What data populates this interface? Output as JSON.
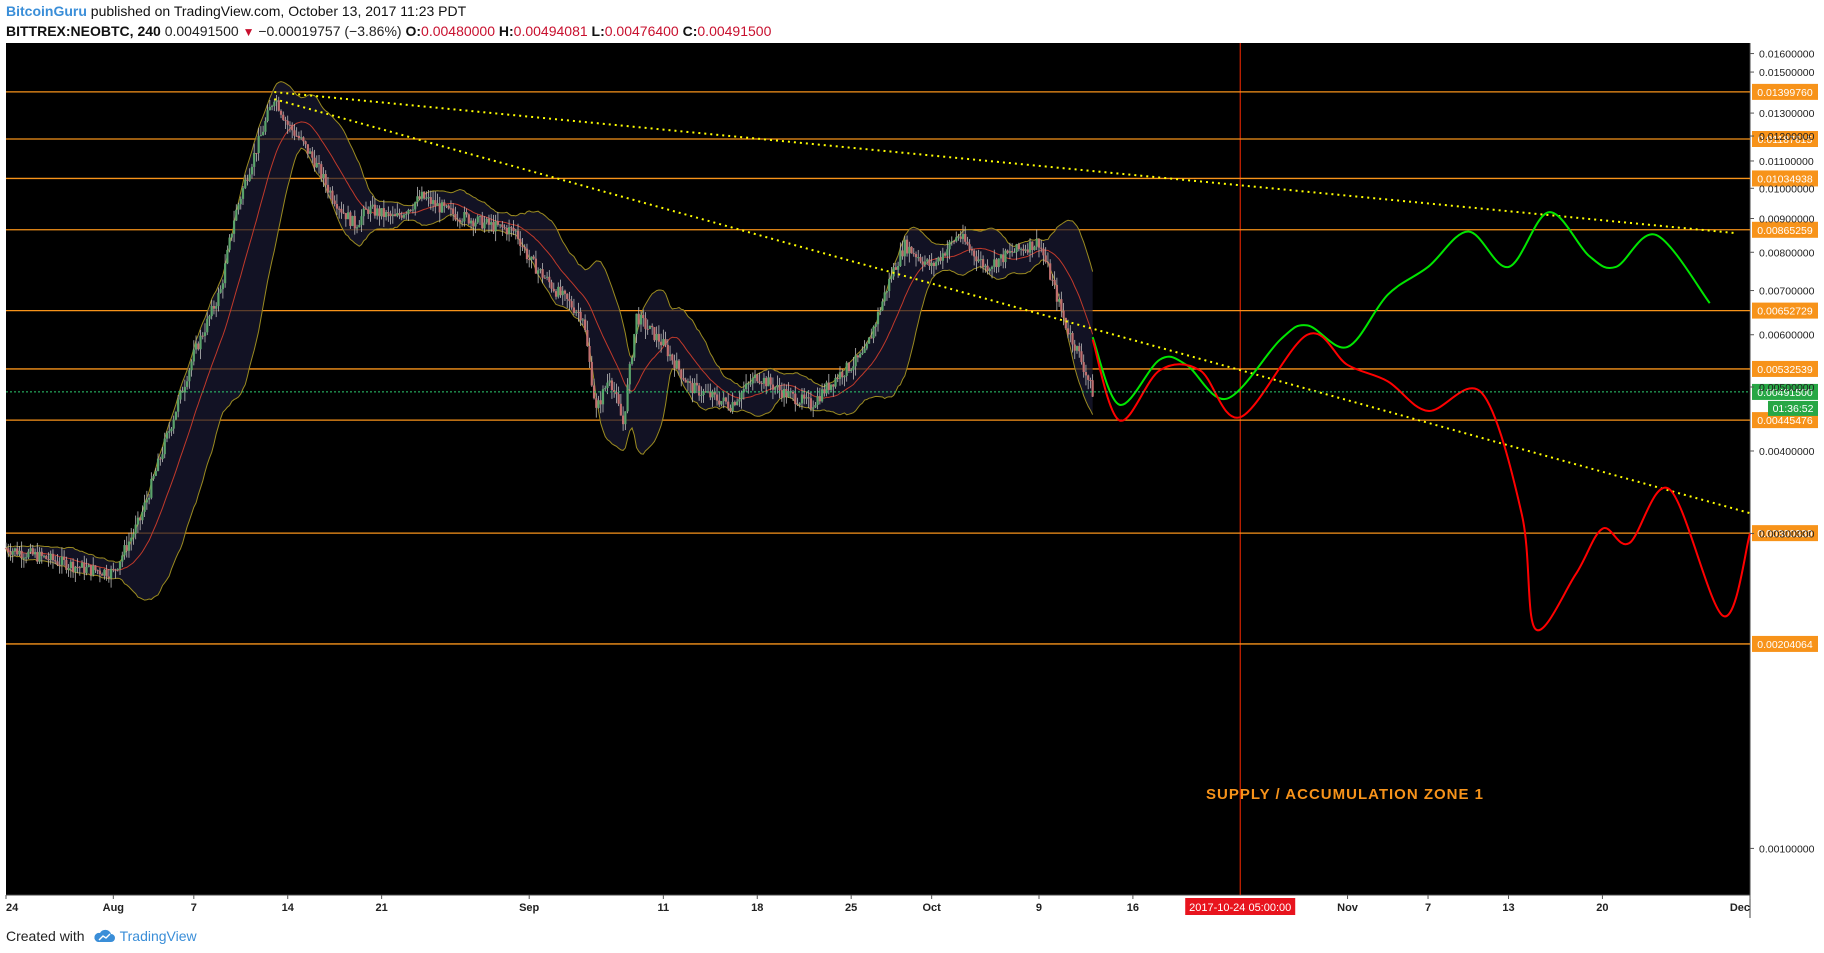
{
  "header": {
    "author": "BitcoinGuru",
    "published": "published on TradingView.com, October 13, 2017 11:23 PDT",
    "symbol": "BITTREX:NEOBTC, 240",
    "last": "0.00491500",
    "change": "−0.00019757 (−3.86%)",
    "o_label": "O:",
    "o": "0.00480000",
    "h_label": "H:",
    "h": "0.00494081",
    "l_label": "L:",
    "l": "0.00476400",
    "c_label": "C:",
    "c": "0.00491500"
  },
  "footer": {
    "created_with": "Created with",
    "brand": "TradingView"
  },
  "colors": {
    "background": "#000000",
    "level_line": "#f7931a",
    "trend_line": "#ffff00",
    "projection_bull": "#00e600",
    "projection_bear": "#ff0000",
    "candle_up": "#5aa36b",
    "candle_down": "#c06f6f",
    "band": "#9a8a20",
    "basis": "#c0392b",
    "cursor": "#ff2a00",
    "axis_bg": "#ffffff"
  },
  "chart_data": {
    "type": "candlestick",
    "title": "",
    "y_scale": "log",
    "ylim": [
      0.00085,
      0.0166
    ],
    "x_range": [
      "2017-07-24",
      "2017-12-01"
    ],
    "y_ticks": [
      "0.01600000",
      "0.01500000",
      "0.01300000",
      "0.01200000",
      "0.01100000",
      "0.01000000",
      "0.00900000",
      "0.00800000",
      "0.00700000",
      "0.00600000",
      "0.00500000",
      "0.00400000",
      "0.00300000",
      "0.00100000"
    ],
    "x_ticks": [
      {
        "date": "2017-07-24",
        "label": "24"
      },
      {
        "date": "2017-08-01",
        "label": "Aug"
      },
      {
        "date": "2017-08-07",
        "label": "7"
      },
      {
        "date": "2017-08-14",
        "label": "14"
      },
      {
        "date": "2017-08-21",
        "label": "21"
      },
      {
        "date": "2017-09-01",
        "label": "Sep"
      },
      {
        "date": "2017-09-11",
        "label": "11"
      },
      {
        "date": "2017-09-18",
        "label": "18"
      },
      {
        "date": "2017-09-25",
        "label": "25"
      },
      {
        "date": "2017-10-01",
        "label": "Oct"
      },
      {
        "date": "2017-10-09",
        "label": "9"
      },
      {
        "date": "2017-10-16",
        "label": "16"
      },
      {
        "date": "2017-11-01",
        "label": "Nov"
      },
      {
        "date": "2017-11-07",
        "label": "7"
      },
      {
        "date": "2017-11-13",
        "label": "13"
      },
      {
        "date": "2017-11-20",
        "label": "20"
      },
      {
        "date": "2017-12-01",
        "label": "Dec"
      }
    ],
    "cursor": {
      "date": "2017-10-24",
      "label": "2017-10-24 05:00:00"
    },
    "horizontal_levels": [
      "0.01399760",
      "0.01187615",
      "0.01034938",
      "0.00865259",
      "0.00652729",
      "0.00532539",
      "0.00445476",
      "0.00300339",
      "0.00204064"
    ],
    "current_price": {
      "value": "0.00491500",
      "countdown": "01:36:52"
    },
    "annotation": "SUPPLY / ACCUMULATION ZONE 1",
    "trend_lines": [
      {
        "from": [
          "2017-08-13",
          0.01399
        ],
        "to": [
          "2017-11-30",
          0.00855
        ]
      },
      {
        "from": [
          "2017-08-13",
          0.01365
        ],
        "to": [
          "2017-12-01",
          0.00322
        ]
      }
    ],
    "price_path": [
      [
        "2017-07-24",
        0.00285
      ],
      [
        "2017-07-27",
        0.00275
      ],
      [
        "2017-07-30",
        0.00265
      ],
      [
        "2017-08-01",
        0.00262
      ],
      [
        "2017-08-03",
        0.00315
      ],
      [
        "2017-08-05",
        0.0042
      ],
      [
        "2017-08-07",
        0.0056
      ],
      [
        "2017-08-09",
        0.007
      ],
      [
        "2017-08-10",
        0.009
      ],
      [
        "2017-08-11",
        0.0105
      ],
      [
        "2017-08-12",
        0.012
      ],
      [
        "2017-08-13",
        0.0138
      ],
      [
        "2017-08-14",
        0.0125
      ],
      [
        "2017-08-15",
        0.0118
      ],
      [
        "2017-08-16",
        0.011
      ],
      [
        "2017-08-17",
        0.01
      ],
      [
        "2017-08-18",
        0.0093
      ],
      [
        "2017-08-19",
        0.0088
      ],
      [
        "2017-08-20",
        0.0093
      ],
      [
        "2017-08-22",
        0.009
      ],
      [
        "2017-08-24",
        0.0097
      ],
      [
        "2017-08-26",
        0.0092
      ],
      [
        "2017-08-29",
        0.0088
      ],
      [
        "2017-08-31",
        0.0086
      ],
      [
        "2017-09-01",
        0.0078
      ],
      [
        "2017-09-03",
        0.007
      ],
      [
        "2017-09-05",
        0.0064
      ],
      [
        "2017-09-06",
        0.0046
      ],
      [
        "2017-09-07",
        0.0052
      ],
      [
        "2017-09-08",
        0.0044
      ],
      [
        "2017-09-09",
        0.0064
      ],
      [
        "2017-09-11",
        0.0058
      ],
      [
        "2017-09-13",
        0.005
      ],
      [
        "2017-09-16",
        0.0047
      ],
      [
        "2017-09-18",
        0.0052
      ],
      [
        "2017-09-20",
        0.0049
      ],
      [
        "2017-09-22",
        0.0047
      ],
      [
        "2017-09-24",
        0.0052
      ],
      [
        "2017-09-26",
        0.0056
      ],
      [
        "2017-09-28",
        0.0074
      ],
      [
        "2017-09-29",
        0.0082
      ],
      [
        "2017-10-01",
        0.0076
      ],
      [
        "2017-10-03",
        0.0085
      ],
      [
        "2017-10-05",
        0.0076
      ],
      [
        "2017-10-07",
        0.008
      ],
      [
        "2017-10-09",
        0.0083
      ],
      [
        "2017-10-10",
        0.0072
      ],
      [
        "2017-10-11",
        0.0062
      ],
      [
        "2017-10-12",
        0.0056
      ],
      [
        "2017-10-13",
        0.00491
      ]
    ],
    "projections": [
      {
        "name": "",
        "color": "#00e600",
        "points": [
          [
            "2017-10-13",
            0.00595
          ],
          [
            "2017-10-15",
            0.0047
          ],
          [
            "2017-10-18",
            0.0055
          ],
          [
            "2017-10-20",
            0.0054
          ],
          [
            "2017-10-23",
            0.0048
          ],
          [
            "2017-10-27",
            0.0059
          ],
          [
            "2017-10-29",
            0.0062
          ],
          [
            "2017-11-01",
            0.00575
          ],
          [
            "2017-11-04",
            0.0069
          ],
          [
            "2017-11-07",
            0.0076
          ],
          [
            "2017-11-10",
            0.0086
          ],
          [
            "2017-11-13",
            0.0076
          ],
          [
            "2017-11-16",
            0.0092
          ],
          [
            "2017-11-19",
            0.0079
          ],
          [
            "2017-11-21",
            0.0076
          ],
          [
            "2017-11-24",
            0.0085
          ],
          [
            "2017-11-28",
            0.0067
          ]
        ]
      },
      {
        "name": "",
        "color": "#ff0000",
        "points": [
          [
            "2017-10-13",
            0.0059
          ],
          [
            "2017-10-15",
            0.00445
          ],
          [
            "2017-10-18",
            0.0053
          ],
          [
            "2017-10-21",
            0.0053
          ],
          [
            "2017-10-24",
            0.0045
          ],
          [
            "2017-10-29",
            0.006
          ],
          [
            "2017-11-01",
            0.0054
          ],
          [
            "2017-11-04",
            0.0051
          ],
          [
            "2017-11-07",
            0.0046
          ],
          [
            "2017-11-11",
            0.0049
          ],
          [
            "2017-11-14",
            0.0032
          ],
          [
            "2017-11-15",
            0.00215
          ],
          [
            "2017-11-18",
            0.0026
          ],
          [
            "2017-11-20",
            0.00305
          ],
          [
            "2017-11-22",
            0.0029
          ],
          [
            "2017-11-25",
            0.0035
          ],
          [
            "2017-11-29",
            0.00225
          ],
          [
            "2017-12-01",
            0.003
          ]
        ]
      }
    ]
  }
}
